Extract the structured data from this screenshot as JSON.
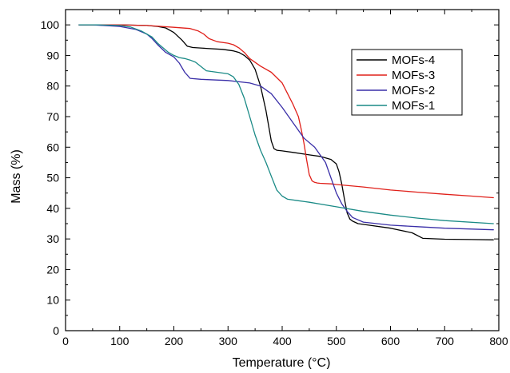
{
  "chart_data": {
    "type": "line",
    "xlabel": "Temperature (°C)",
    "ylabel": "Mass (%)",
    "xlim": [
      0,
      800
    ],
    "ylim": [
      0,
      105
    ],
    "xticks": [
      0,
      100,
      200,
      300,
      400,
      500,
      600,
      700,
      800
    ],
    "yticks": [
      0,
      10,
      20,
      30,
      40,
      50,
      60,
      70,
      80,
      90,
      100
    ],
    "grid": false,
    "legend_position": "top-right",
    "series": [
      {
        "name": "MOFs-4",
        "color": "#000000",
        "x": [
          25,
          60,
          100,
          150,
          170,
          185,
          200,
          215,
          225,
          235,
          260,
          290,
          310,
          320,
          330,
          340,
          350,
          360,
          370,
          380,
          385,
          390,
          400,
          420,
          450,
          470,
          490,
          500,
          505,
          510,
          515,
          520,
          525,
          530,
          540,
          560,
          600,
          640,
          660,
          700,
          750,
          790
        ],
        "y": [
          100,
          100,
          100,
          99.8,
          99.5,
          99,
          97.5,
          95,
          93,
          92.6,
          92.3,
          92,
          91.5,
          91,
          90,
          88.5,
          85.5,
          80,
          72,
          62,
          59.5,
          59,
          58.8,
          58.3,
          57.5,
          57,
          56,
          54.5,
          52,
          48,
          43,
          38.5,
          36.5,
          35.8,
          35,
          34.5,
          33.5,
          32,
          30.2,
          29.9,
          29.8,
          29.7
        ]
      },
      {
        "name": "MOFs-3",
        "color": "#e0201a",
        "x": [
          25,
          100,
          150,
          200,
          230,
          245,
          255,
          265,
          280,
          300,
          310,
          320,
          330,
          340,
          360,
          380,
          400,
          410,
          420,
          430,
          435,
          440,
          445,
          450,
          455,
          460,
          465,
          470,
          490,
          500,
          550,
          600,
          650,
          700,
          750,
          790
        ],
        "y": [
          100,
          100,
          99.8,
          99.2,
          98.8,
          98,
          97,
          95.5,
          94.5,
          94,
          93.5,
          92.5,
          91,
          89,
          86.5,
          84.5,
          81,
          77.5,
          74,
          70,
          66,
          61.5,
          56,
          51,
          49,
          48.5,
          48.3,
          48.2,
          48,
          47.8,
          47,
          46,
          45.3,
          44.6,
          44,
          43.5
        ]
      },
      {
        "name": "MOFs-2",
        "color": "#3a2fa8",
        "x": [
          25,
          50,
          100,
          130,
          150,
          160,
          170,
          185,
          200,
          210,
          220,
          230,
          250,
          300,
          340,
          360,
          380,
          400,
          420,
          440,
          460,
          480,
          490,
          500,
          510,
          520,
          530,
          550,
          600,
          650,
          700,
          790
        ],
        "y": [
          100,
          100,
          99.5,
          98.5,
          97,
          95.5,
          93.5,
          91,
          89.5,
          87.5,
          84.5,
          82.5,
          82.2,
          81.8,
          81,
          80,
          77.5,
          73,
          68,
          63,
          60,
          55,
          50,
          45,
          41.5,
          39,
          37,
          35.5,
          34.5,
          34,
          33.5,
          33
        ]
      },
      {
        "name": "MOFs-1",
        "color": "#1a8a86",
        "x": [
          25,
          60,
          100,
          120,
          140,
          160,
          170,
          190,
          200,
          210,
          220,
          230,
          240,
          260,
          280,
          300,
          310,
          320,
          330,
          340,
          350,
          360,
          370,
          380,
          390,
          400,
          410,
          430,
          450,
          500,
          550,
          600,
          650,
          700,
          790
        ],
        "y": [
          100,
          100,
          99.8,
          99.3,
          98,
          96,
          94,
          91,
          90,
          89.3,
          89,
          88.5,
          87.8,
          85,
          84.5,
          84,
          83,
          80.5,
          76,
          70,
          64,
          59,
          55,
          50.5,
          46,
          44,
          43,
          42.5,
          42,
          40.5,
          39,
          37.8,
          36.8,
          36,
          35
        ]
      }
    ]
  }
}
